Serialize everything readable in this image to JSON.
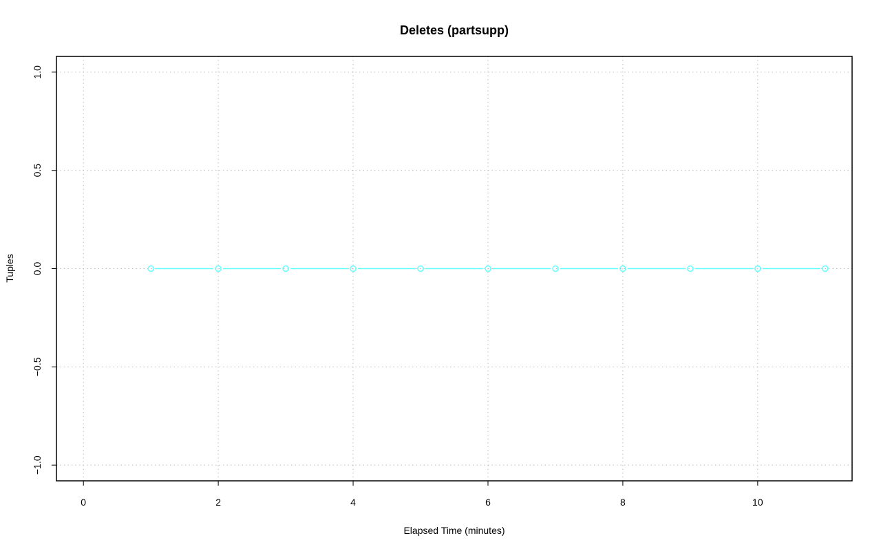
{
  "chart_data": {
    "type": "line",
    "title": "Deletes (partsupp)",
    "xlabel": "Elapsed Time (minutes)",
    "ylabel": "Tuples",
    "xlim": [
      -0.4,
      11.4
    ],
    "ylim": [
      -1.08,
      1.08
    ],
    "xticks": [
      0,
      2,
      4,
      6,
      8,
      10
    ],
    "yticks": [
      -1.0,
      -0.5,
      0.0,
      0.5,
      1.0
    ],
    "xtick_labels": [
      "0",
      "2",
      "4",
      "6",
      "8",
      "10"
    ],
    "ytick_labels": [
      "−1.0",
      "−0.5",
      "0.0",
      "0.5",
      "1.0"
    ],
    "grid": true,
    "series": [
      {
        "x": [
          1,
          2,
          3,
          4,
          5,
          6,
          7,
          8,
          9,
          10,
          11
        ],
        "y": [
          0,
          0,
          0,
          0,
          0,
          0,
          0,
          0,
          0,
          0,
          0
        ],
        "color": "#66FFFF",
        "marker": "open-circle"
      }
    ]
  }
}
